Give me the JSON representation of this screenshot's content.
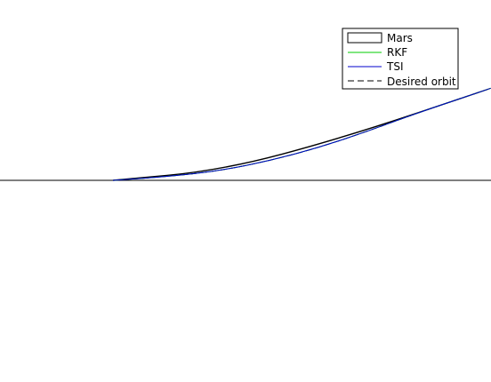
{
  "chart_data": {
    "type": "line",
    "title": "",
    "xlabel": "",
    "ylabel": "",
    "xlim": [
      0,
      1
    ],
    "ylim": [
      -1,
      1
    ],
    "grid": false,
    "axes_visible": false,
    "legend_placement": "top-right",
    "series": [
      {
        "name": "Mars",
        "kind": "filled-object",
        "color": "#000000",
        "fill": "#ffffff",
        "x": [
          0.23,
          0.45,
          0.7,
          1.0
        ],
        "y": [
          0.0,
          0.06,
          0.26,
          0.56
        ]
      },
      {
        "name": "RKF",
        "color": "#00cc00",
        "x": [
          0.23,
          0.35,
          0.45,
          0.55,
          0.65,
          0.75,
          0.85,
          1.0
        ],
        "y": [
          0.0,
          0.025,
          0.06,
          0.12,
          0.2,
          0.3,
          0.41,
          0.56
        ]
      },
      {
        "name": "TSI",
        "color": "#0000cc",
        "x": [
          0.23,
          0.35,
          0.45,
          0.55,
          0.65,
          0.75,
          0.85,
          1.0
        ],
        "y": [
          0.0,
          0.025,
          0.06,
          0.12,
          0.2,
          0.3,
          0.41,
          0.56
        ]
      },
      {
        "name": "Desired orbit",
        "color": "#000000",
        "dash": true,
        "x": [
          0.23,
          0.35,
          0.45,
          0.55,
          0.65,
          0.75,
          0.85,
          1.0
        ],
        "y": [
          0.0,
          0.025,
          0.06,
          0.12,
          0.2,
          0.3,
          0.41,
          0.56
        ]
      }
    ],
    "reference_line": {
      "y": 0,
      "color": "#000000"
    }
  }
}
